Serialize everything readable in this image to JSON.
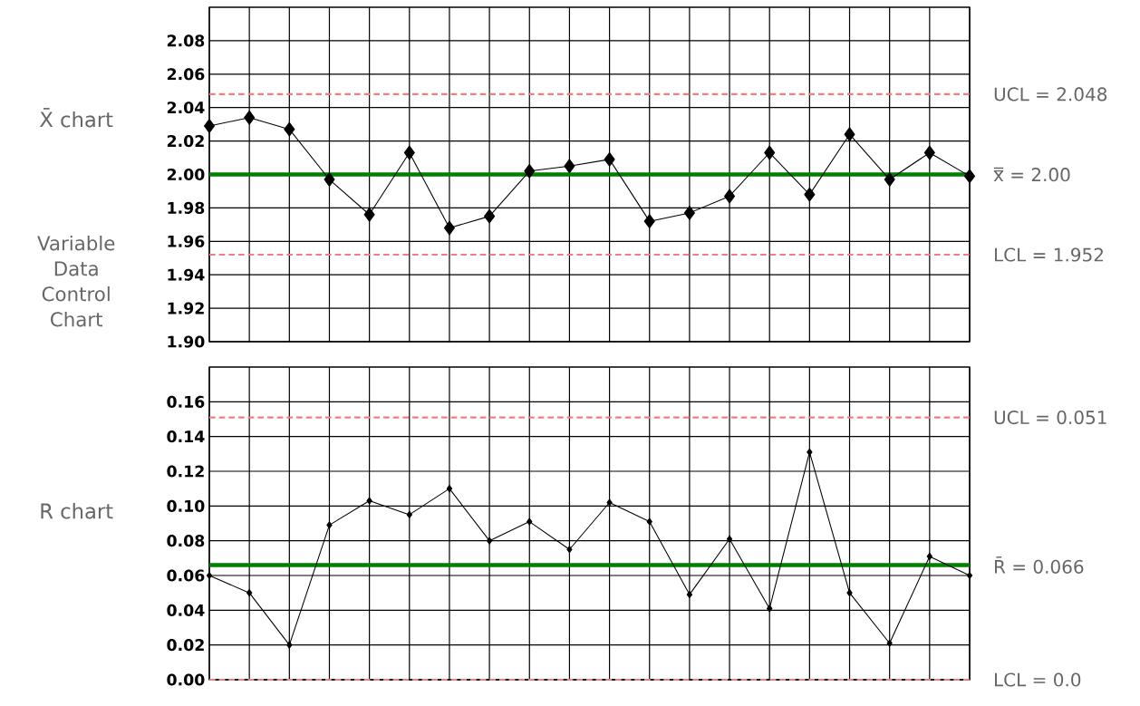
{
  "chart_data": [
    {
      "type": "line",
      "title": "Variable Data Control Chart",
      "ylabel": "X̄ chart",
      "categories": [
        null,
        null,
        null,
        null,
        null,
        null,
        null,
        null,
        null,
        null,
        null,
        null,
        null,
        null,
        null,
        null,
        null,
        null,
        null,
        null
      ],
      "series": [
        {
          "color": "#000000",
          "values": [
            2.029,
            2.034,
            2.027,
            1.997,
            1.976,
            2.013,
            1.968,
            1.975,
            2.002,
            2.005,
            2.009,
            1.972,
            1.977,
            1.987,
            2.013,
            1.988,
            2.024,
            1.997,
            2.013,
            1.999
          ]
        }
      ],
      "ylim": [
        1.9,
        2.1
      ],
      "yticks": [
        {
          "value": 1.9,
          "label": "1.90"
        },
        {
          "value": 1.92,
          "label": "1.92"
        },
        {
          "value": 1.94,
          "label": "1.94"
        },
        {
          "value": 1.96,
          "label": "1.96"
        },
        {
          "value": 1.98,
          "label": "1.98"
        },
        {
          "value": 2.0,
          "label": "2.00"
        },
        {
          "value": 2.02,
          "label": "2.02"
        },
        {
          "value": 2.04,
          "label": "2.04"
        },
        {
          "value": 2.06,
          "label": "2.06"
        },
        {
          "value": 2.08,
          "label": "2.08"
        }
      ],
      "grid": true,
      "tick_labels": "y",
      "marker": "diamond",
      "line_style": "solid",
      "ref_lines": [
        {
          "axis": "y",
          "value": 2.048,
          "label": "UCL = 2.048",
          "color": "#f08080",
          "line_style": "dashed"
        },
        {
          "axis": "y",
          "value": 2.0,
          "label": "x̿ = 2.00",
          "color": "#008000",
          "line_style": "solid"
        },
        {
          "axis": "y",
          "value": 1.952,
          "label": "LCL = 1.952",
          "color": "#f08080",
          "line_style": "dashed"
        }
      ]
    },
    {
      "type": "line",
      "ylabel": "R chart",
      "categories": [
        null,
        null,
        null,
        null,
        null,
        null,
        null,
        null,
        null,
        null,
        null,
        null,
        null,
        null,
        null,
        null,
        null,
        null,
        null,
        null
      ],
      "annotations": [
        "UCL = 0.051"
      ],
      "series": [
        {
          "color": "#000000",
          "values": [
            0.06,
            0.05,
            0.02,
            0.089,
            0.103,
            0.095,
            0.11,
            0.08,
            0.091,
            0.075,
            0.102,
            0.091,
            0.049,
            0.081,
            0.041,
            0.131,
            0.05,
            0.021,
            0.071,
            0.06
          ]
        }
      ],
      "ylim": [
        0,
        0.18
      ],
      "yticks": [
        {
          "value": 0,
          "label": "0.00"
        },
        {
          "value": 0.02,
          "label": "0.02"
        },
        {
          "value": 0.04,
          "label": "0.04"
        },
        {
          "value": 0.06,
          "label": "0.06"
        },
        {
          "value": 0.08,
          "label": "0.08"
        },
        {
          "value": 0.1,
          "label": "0.10"
        },
        {
          "value": 0.12,
          "label": "0.12"
        },
        {
          "value": 0.14,
          "label": "0.14"
        },
        {
          "value": 0.16,
          "label": "0.16"
        }
      ],
      "grid": true,
      "tick_labels": "y",
      "marker": "diamond",
      "line_style": "solid",
      "ref_lines": [
        {
          "axis": "y",
          "value": 0.151,
          "color": "#f08080",
          "line_style": "dashed"
        },
        {
          "axis": "y",
          "value": 0.066,
          "label": "R̄ = 0.066",
          "color": "#008000",
          "line_style": "solid"
        },
        {
          "axis": "y",
          "value": 0,
          "label": "LCL = 0.0",
          "color": "#f08080",
          "line_style": "dashed"
        }
      ]
    }
  ]
}
